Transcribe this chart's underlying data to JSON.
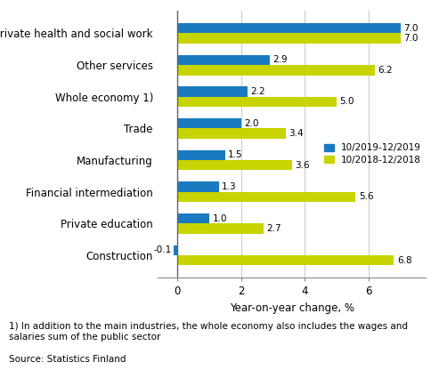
{
  "categories": [
    "Construction",
    "Private education",
    "Financial intermediation",
    "Manufacturing",
    "Trade",
    "Whole economy 1)",
    "Other services",
    "Private health and social work"
  ],
  "series_2019": [
    -0.1,
    1.0,
    1.3,
    1.5,
    2.0,
    2.2,
    2.9,
    7.0
  ],
  "series_2018": [
    6.8,
    2.7,
    5.6,
    3.6,
    3.4,
    5.0,
    6.2,
    7.0
  ],
  "color_2019": "#1a7abf",
  "color_2018": "#c8d400",
  "legend_2019": "10/2019-12/2019",
  "legend_2018": "10/2018-12/2018",
  "xlabel": "Year-on-year change, %",
  "xlim": [
    -0.6,
    7.8
  ],
  "xticks": [
    0,
    2,
    4,
    6
  ],
  "footnote": "1) In addition to the main industries, the whole economy also includes the wages and\nsalaries sum of the public sector",
  "source": "Source: Statistics Finland",
  "bar_height": 0.32,
  "grid_color": "#cccccc",
  "background_color": "#ffffff",
  "label_fontsize": 7.5,
  "ytick_fontsize": 8.5,
  "xlabel_fontsize": 8.5
}
